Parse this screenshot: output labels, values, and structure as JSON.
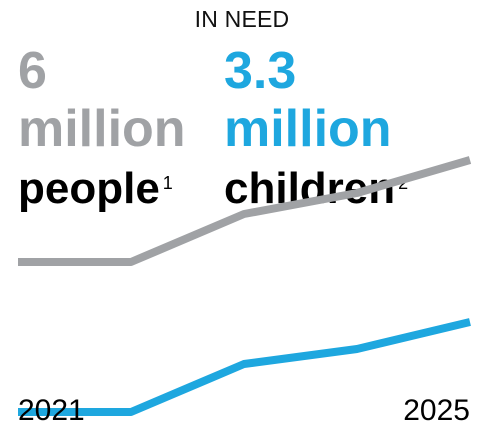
{
  "heading": "IN NEED",
  "stats": {
    "people": {
      "value": "6",
      "unit": "million",
      "noun": "people",
      "footnote": "1",
      "color": "#a0a2a5"
    },
    "children": {
      "value": "3.3",
      "unit": "million",
      "noun": "children",
      "footnote": "2",
      "color": "#1ea7df"
    }
  },
  "chart_data": {
    "type": "line",
    "title": "IN NEED",
    "x_ticks": [
      "2021",
      "2025"
    ],
    "x": [
      2021,
      2022,
      2023,
      2024,
      2025
    ],
    "xlim": [
      2021,
      2025
    ],
    "ylim": [
      0,
      7
    ],
    "grid": false,
    "legend": "none",
    "series": [
      {
        "values": [
          4.3,
          4.3,
          5.1,
          5.45,
          6.0
        ],
        "color": "#a0a2a5"
      },
      {
        "values": [
          1.8,
          1.8,
          2.6,
          2.85,
          3.3
        ],
        "color": "#1ea7df"
      }
    ]
  }
}
